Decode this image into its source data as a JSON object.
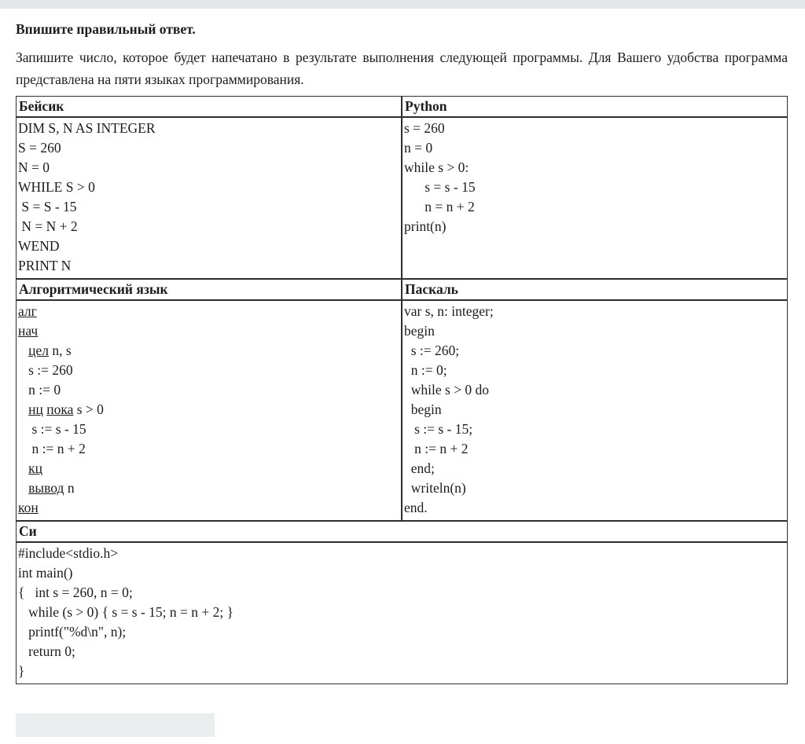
{
  "page": {
    "prompt": "Впишите правильный ответ.",
    "task": "Запишите число, которое будет напечатано в результате выполнения следующей программы. Для Вашего удобства программа представлена на пяти языках программирования."
  },
  "colors": {
    "topbar": "#e2e6e6",
    "answer_box": "#e9edee",
    "border": "#2e2e2e",
    "text": "#1c1c1c"
  },
  "answer": {
    "value": "",
    "placeholder": ""
  },
  "table": {
    "sections": [
      {
        "columns": [
          {
            "header": "Бейсик",
            "lines": [
              "DIM S, N AS INTEGER",
              "S = 260",
              "N = 0",
              "WHILE S > 0",
              " S = S - 15",
              " N = N + 2",
              "WEND",
              "PRINT N"
            ]
          },
          {
            "header": "Python",
            "lines": [
              "s = 260",
              "n = 0",
              "while s > 0:",
              "      s = s - 15",
              "      n = n + 2",
              "print(n)"
            ]
          }
        ]
      },
      {
        "columns": [
          {
            "header": "Алгоритмический язык",
            "lines": [
              [
                {
                  "t": "алг",
                  "u": true
                }
              ],
              [
                {
                  "t": "нач",
                  "u": true
                }
              ],
              [
                {
                  "t": "   "
                },
                {
                  "t": "цел",
                  "u": true
                },
                {
                  "t": " n, s"
                }
              ],
              [
                {
                  "t": "   s := 260"
                }
              ],
              [
                {
                  "t": "   n := 0"
                }
              ],
              [
                {
                  "t": "   "
                },
                {
                  "t": "нц",
                  "u": true
                },
                {
                  "t": " "
                },
                {
                  "t": "пока",
                  "u": true
                },
                {
                  "t": " s > 0"
                }
              ],
              [
                {
                  "t": "    s := s - 15"
                }
              ],
              [
                {
                  "t": "    n := n + 2"
                }
              ],
              [
                {
                  "t": "   "
                },
                {
                  "t": "кц",
                  "u": true
                }
              ],
              [
                {
                  "t": "   "
                },
                {
                  "t": "вывод",
                  "u": true
                },
                {
                  "t": " n"
                }
              ],
              [
                {
                  "t": "кон",
                  "u": true
                }
              ]
            ]
          },
          {
            "header": "Паскаль",
            "lines": [
              "var s, n: integer;",
              "begin",
              "  s := 260;",
              "  n := 0;",
              "  while s > 0 do",
              "  begin",
              "   s := s - 15;",
              "   n := n + 2",
              "  end;",
              "  writeln(n)",
              "end."
            ]
          }
        ]
      },
      {
        "columns": [
          {
            "header": "Си",
            "lines": [
              "#include<stdio.h>",
              "int main()",
              "{   int s = 260, n = 0;",
              "   while (s > 0) { s = s - 15; n = n + 2; }",
              "   printf(\"%d\\n\", n);",
              "   return 0;",
              "}"
            ]
          }
        ]
      }
    ]
  }
}
